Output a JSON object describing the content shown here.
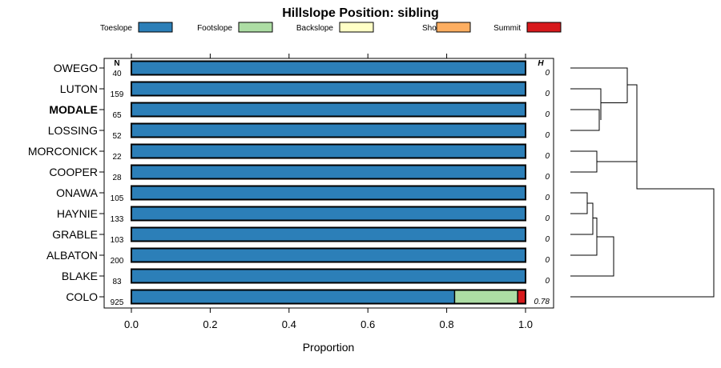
{
  "chart_data": {
    "type": "bar",
    "title": "Hillslope Position: sibling",
    "xlabel": "Proportion",
    "ylabel": "",
    "xlim": [
      0,
      1
    ],
    "xticks": [
      "0.0",
      "0.2",
      "0.4",
      "0.6",
      "0.8",
      "1.0"
    ],
    "n_header": "N",
    "h_header": "H",
    "legend_position": "top",
    "legend": [
      {
        "name": "Toeslope",
        "color": "#2c7fb8"
      },
      {
        "name": "Footslope",
        "color": "#addda4"
      },
      {
        "name": "Backslope",
        "color": "#ffffc6"
      },
      {
        "name": "Shoulder",
        "color": "#fdae61"
      },
      {
        "name": "Summit",
        "color": "#d7191c"
      }
    ],
    "categories": [
      "OWEGO",
      "LUTON",
      "MODALE",
      "LOSSING",
      "MORCONICK",
      "COOPER",
      "ONAWA",
      "HAYNIE",
      "GRABLE",
      "ALBATON",
      "BLAKE",
      "COLO"
    ],
    "highlight": "MODALE",
    "n": [
      "40",
      "159",
      "65",
      "52",
      "22",
      "28",
      "105",
      "133",
      "103",
      "200",
      "83",
      "925"
    ],
    "h": [
      "0",
      "0",
      "0",
      "0",
      "0",
      "0",
      "0",
      "0",
      "0",
      "0",
      "0",
      "0.78"
    ],
    "series": [
      {
        "name": "Toeslope",
        "values": [
          1,
          1,
          1,
          1,
          1,
          1,
          1,
          1,
          1,
          1,
          1,
          0.82
        ]
      },
      {
        "name": "Footslope",
        "values": [
          0,
          0,
          0,
          0,
          0,
          0,
          0,
          0,
          0,
          0,
          0,
          0.16
        ]
      },
      {
        "name": "Backslope",
        "values": [
          0,
          0,
          0,
          0,
          0,
          0,
          0,
          0,
          0,
          0,
          0,
          0
        ]
      },
      {
        "name": "Shoulder",
        "values": [
          0,
          0,
          0,
          0,
          0,
          0,
          0,
          0,
          0,
          0,
          0,
          0
        ]
      },
      {
        "name": "Summit",
        "values": [
          0,
          0,
          0,
          0,
          0,
          0,
          0,
          0,
          0,
          0,
          0,
          0.02
        ]
      }
    ]
  }
}
